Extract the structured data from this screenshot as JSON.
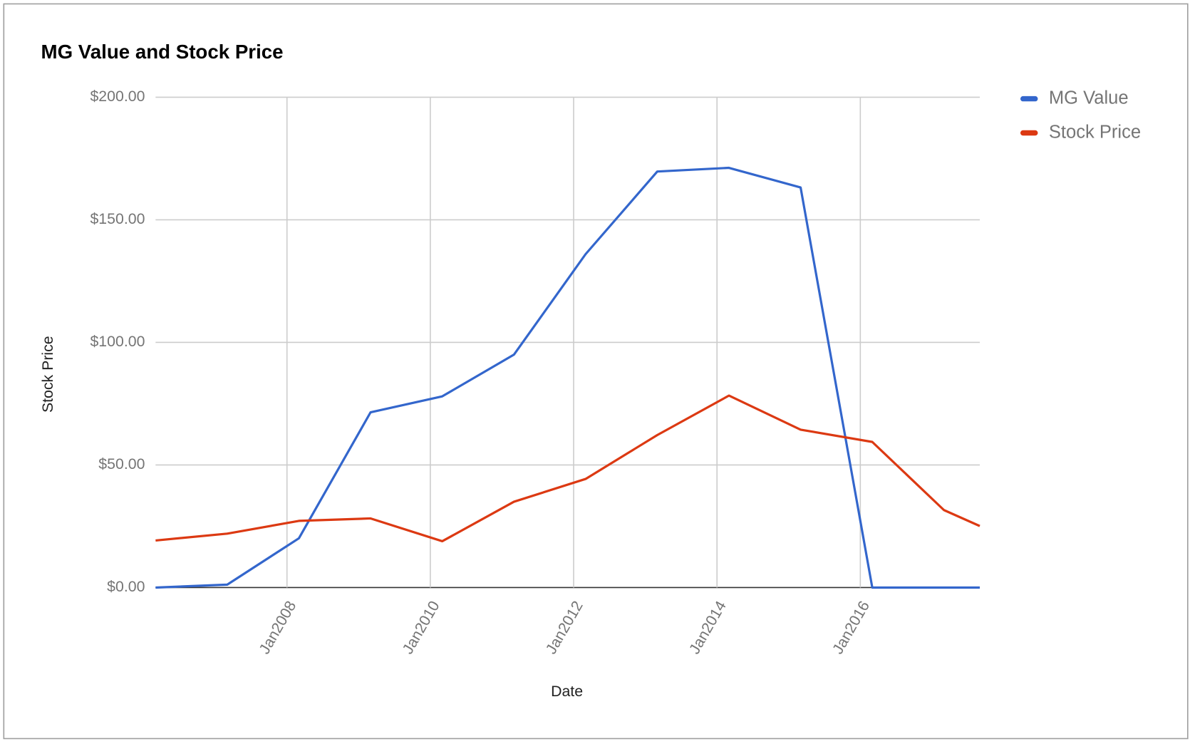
{
  "chart_data": {
    "type": "line",
    "title": "MG Value and Stock Price",
    "x_label": "Date",
    "y_label": "Stock Price",
    "x": [
      "2006-03",
      "2007-03",
      "2008-03",
      "2009-03",
      "2010-03",
      "2011-03",
      "2012-03",
      "2013-03",
      "2014-03",
      "2015-03",
      "2016-03",
      "2017-03",
      "2017-09"
    ],
    "series": [
      {
        "name": "MG Value",
        "color": "#3366cc",
        "values": [
          0,
          1.2,
          20.1,
          71.5,
          78,
          95,
          136,
          169.7,
          171.2,
          163.2,
          0,
          0,
          0
        ]
      },
      {
        "name": "Stock Price",
        "color": "#dc3912",
        "values": [
          19.2,
          22,
          27.2,
          28.2,
          18.9,
          35,
          44.3,
          62.2,
          78.3,
          64.4,
          59.4,
          31.6,
          25.1
        ]
      }
    ],
    "xlim": [
      "2006-03",
      "2017-09"
    ],
    "xticks": [
      {
        "value": "2008-01",
        "label": "Jan2008"
      },
      {
        "value": "2010-01",
        "label": "Jan2010"
      },
      {
        "value": "2012-01",
        "label": "Jan2012"
      },
      {
        "value": "2014-01",
        "label": "Jan2014"
      },
      {
        "value": "2016-01",
        "label": "Jan2016"
      }
    ],
    "ylim": [
      0,
      200
    ],
    "yticks": [
      {
        "value": 0,
        "label": "$0.00"
      },
      {
        "value": 50,
        "label": "$50.00"
      },
      {
        "value": 100,
        "label": "$100.00"
      },
      {
        "value": 150,
        "label": "$150.00"
      },
      {
        "value": 200,
        "label": "$200.00"
      }
    ],
    "grid": true,
    "legend": "right"
  }
}
